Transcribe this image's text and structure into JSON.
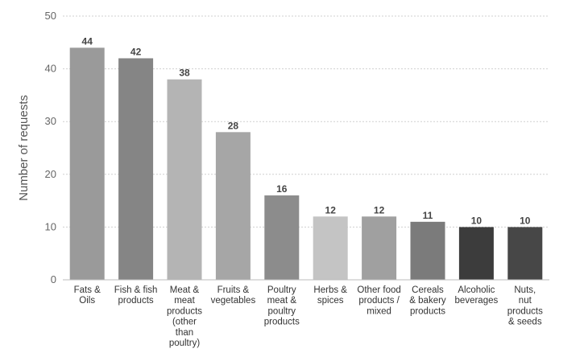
{
  "chart_data": {
    "type": "bar",
    "title": "",
    "xlabel": "",
    "ylabel": "Number of requests",
    "ylim": [
      0,
      50
    ],
    "yticks": [
      0,
      10,
      20,
      30,
      40,
      50
    ],
    "grid": true,
    "categories": [
      [
        "Fats &",
        "Oils"
      ],
      [
        "Fish & fish",
        "products"
      ],
      [
        "Meat &",
        "meat",
        "products",
        "(other",
        "than",
        "poultry)"
      ],
      [
        "Fruits &",
        "vegetables"
      ],
      [
        "Poultry",
        "meat &",
        "poultry",
        "products"
      ],
      [
        "Herbs &",
        "spices"
      ],
      [
        "Other food",
        "products /",
        "mixed"
      ],
      [
        "Cereals",
        "& bakery",
        "products"
      ],
      [
        "Alcoholic",
        "beverages"
      ],
      [
        "Nuts,",
        "nut",
        "products",
        "& seeds"
      ]
    ],
    "values": [
      44,
      42,
      38,
      28,
      16,
      12,
      12,
      11,
      10,
      10
    ],
    "colors": [
      "#9a9a9a",
      "#858585",
      "#b4b4b4",
      "#a6a6a6",
      "#8c8c8c",
      "#c4c4c4",
      "#a0a0a0",
      "#7b7b7b",
      "#3c3c3c",
      "#474747"
    ]
  }
}
